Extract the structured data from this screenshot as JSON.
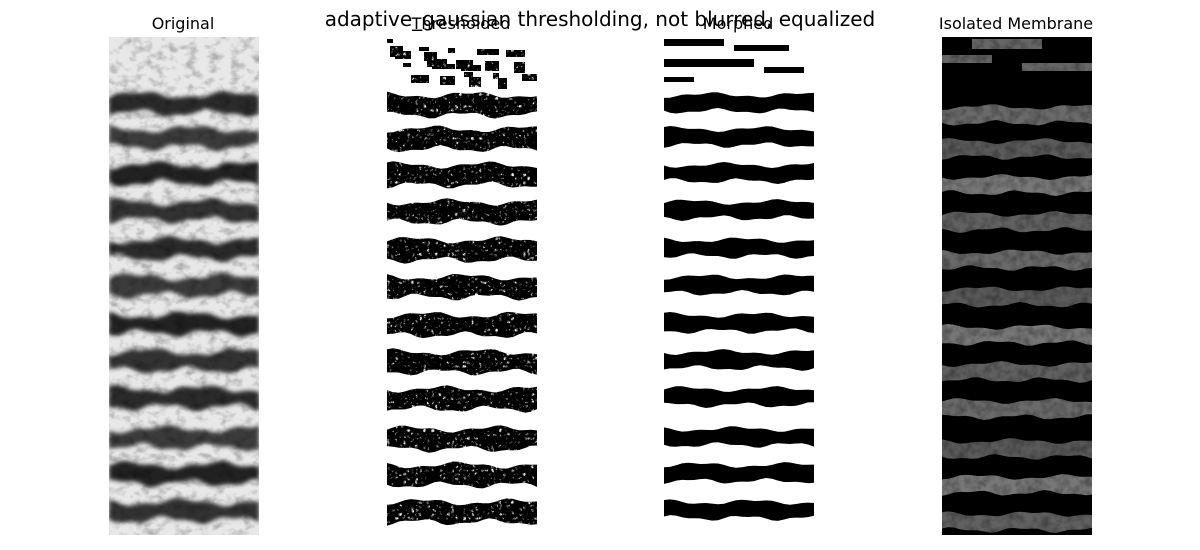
{
  "figure": {
    "suptitle": "adaptive_gaussian thresholding, not blurred, equalized"
  },
  "panels": [
    {
      "title": "Original",
      "image": "grayscale-membrane-stripes"
    },
    {
      "title": "Thresholded",
      "image": "binary-noisy-stripes"
    },
    {
      "title": "Morphed",
      "image": "binary-clean-stripes"
    },
    {
      "title": "Isolated Membrane",
      "image": "masked-gray-stripes"
    }
  ],
  "colors": {
    "background": "#ffffff",
    "foreground": "#000000"
  }
}
